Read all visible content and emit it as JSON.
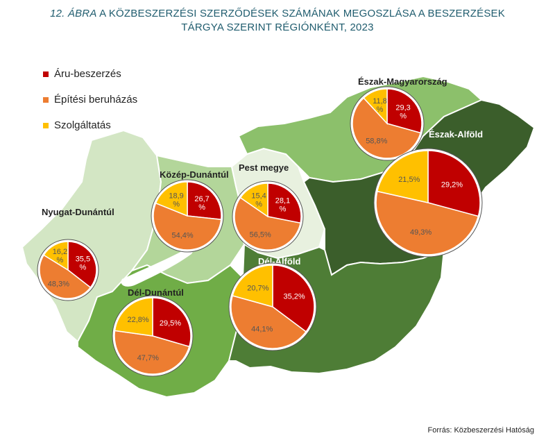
{
  "title": {
    "number": "12. ÁBRA",
    "line1_rest": "A KÖZBESZERZÉSI SZERZŐDÉSEK SZÁMÁNAK MEGOSZLÁSA A BESZERZÉSEK",
    "line2": "TÁRGYA SZERINT RÉGIÓNKÉNT, 2023"
  },
  "legend": [
    {
      "label": "Áru-beszerzés",
      "color": "#c00000"
    },
    {
      "label": "Építési beruházás",
      "color": "#ed7d31"
    },
    {
      "label": "Szolgáltatás",
      "color": "#ffc000"
    }
  ],
  "source": "Forrás: Közbeszerzési Hatóság",
  "chart_data": {
    "type": "pie",
    "categories": [
      "Áru-beszerzés",
      "Építési beruházás",
      "Szolgáltatás"
    ],
    "colors": [
      "#c00000",
      "#ed7d31",
      "#ffc000"
    ],
    "regions": [
      {
        "name": "Észak-Magyarország",
        "values": [
          29.3,
          58.8,
          11.8
        ],
        "labels": [
          "29,3 %",
          "58,8%",
          "11,8 %"
        ]
      },
      {
        "name": "Észak-Alföld",
        "values": [
          29.2,
          49.3,
          21.5
        ],
        "labels": [
          "29,2%",
          "49,3%",
          "21,5%"
        ]
      },
      {
        "name": "Pest megye",
        "values": [
          28.1,
          56.5,
          15.4
        ],
        "labels": [
          "28,1 %",
          "56,5%",
          "15,4 %"
        ]
      },
      {
        "name": "Közép-Dunántúl",
        "values": [
          26.7,
          54.4,
          18.9
        ],
        "labels": [
          "26,7 %",
          "54,4%",
          "18,9 %"
        ]
      },
      {
        "name": "Nyugat-Dunántúl",
        "values": [
          35.5,
          48.3,
          16.2
        ],
        "labels": [
          "35,5 %",
          "48,3%",
          "16,2 %"
        ]
      },
      {
        "name": "Dél-Alföld",
        "values": [
          35.2,
          44.1,
          20.7
        ],
        "labels": [
          "35,2%",
          "44,1%",
          "20,7%"
        ]
      },
      {
        "name": "Dél-Dunántúl",
        "values": [
          29.5,
          47.7,
          22.8
        ],
        "labels": [
          "29,5%",
          "47,7%",
          "22,8%"
        ]
      }
    ]
  }
}
